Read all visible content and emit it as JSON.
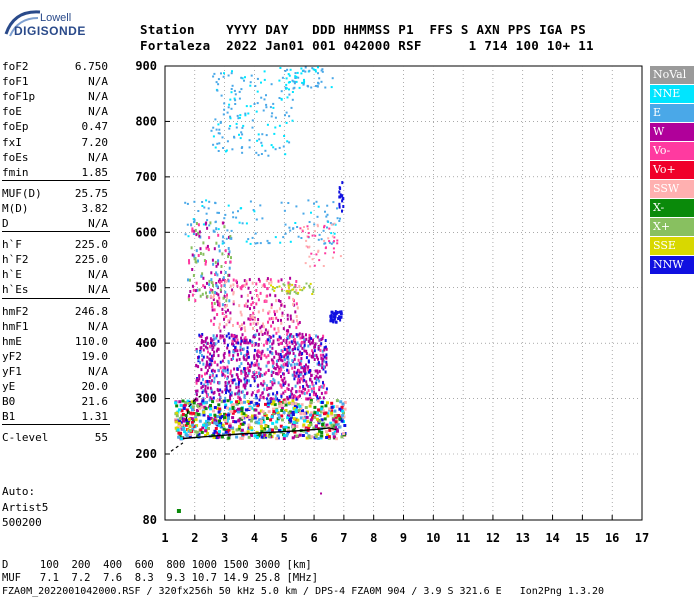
{
  "logo": {
    "brand": "Lowell",
    "product": "DIGISONDE"
  },
  "header": {
    "line1": "Station    YYYY DAY   DDD HHMMSS P1  FFS S AXN PPS IGA PS",
    "line2": "Fortaleza  2022 Jan01 001 042000 RSF      1 714 100 10+ 11"
  },
  "params": [
    {
      "key": "foF2",
      "value": "6.750"
    },
    {
      "key": "foF1",
      "value": "N/A"
    },
    {
      "key": "foF1p",
      "value": "N/A"
    },
    {
      "key": "foE",
      "value": "N/A"
    },
    {
      "key": "foEp",
      "value": "0.47"
    },
    {
      "key": "fxI",
      "value": "7.20"
    },
    {
      "key": "foEs",
      "value": "N/A"
    },
    {
      "key": "fmin",
      "value": "1.85"
    },
    {
      "key": "MUF(D)",
      "value": "25.75"
    },
    {
      "key": "M(D)",
      "value": "3.82"
    },
    {
      "key": "D",
      "value": "N/A"
    },
    {
      "key": "h`F",
      "value": "225.0"
    },
    {
      "key": "h`F2",
      "value": "225.0"
    },
    {
      "key": "h`E",
      "value": "N/A"
    },
    {
      "key": "h`Es",
      "value": "N/A"
    },
    {
      "key": "hmF2",
      "value": "246.8"
    },
    {
      "key": "hmF1",
      "value": "N/A"
    },
    {
      "key": "hmE",
      "value": "110.0"
    },
    {
      "key": "yF2",
      "value": "19.0"
    },
    {
      "key": "yF1",
      "value": "N/A"
    },
    {
      "key": "yE",
      "value": "20.0"
    },
    {
      "key": "B0",
      "value": "21.6"
    },
    {
      "key": "B1",
      "value": "1.31"
    },
    {
      "key": "C-level",
      "value": "55"
    }
  ],
  "auto": {
    "line1": "Auto:",
    "line2": "Artist5",
    "line3": "500200"
  },
  "legend": [
    {
      "label": "NoVal",
      "color": "#9a9a9a"
    },
    {
      "label": "NNE",
      "color": "#00e5ff"
    },
    {
      "label": "E",
      "color": "#4aa8e8"
    },
    {
      "label": "W",
      "color": "#b0009a"
    },
    {
      "label": "Vo-",
      "color": "#ff3aa0"
    },
    {
      "label": "Vo+",
      "color": "#f0002a"
    },
    {
      "label": "SSW",
      "color": "#ffb0b0"
    },
    {
      "label": "X-",
      "color": "#0a8a0a"
    },
    {
      "label": "X+",
      "color": "#88c060"
    },
    {
      "label": "SSE",
      "color": "#d8d800"
    },
    {
      "label": "NNW",
      "color": "#1010e0"
    }
  ],
  "chart_data": {
    "type": "scatter",
    "x_ticks": [
      "1",
      "2",
      "3",
      "4",
      "5",
      "6",
      "7",
      "8",
      "9",
      "10",
      "11",
      "12",
      "13",
      "14",
      "15",
      "16",
      "17"
    ],
    "y_ticks": [
      "80",
      "200",
      "300",
      "400",
      "500",
      "600",
      "700",
      "800",
      "900"
    ],
    "xlim": [
      1,
      17
    ],
    "ylim": [
      80,
      900
    ],
    "grid": true,
    "profile_curve": [
      [
        1.6,
        228
      ],
      [
        2.5,
        232
      ],
      [
        3.5,
        236
      ],
      [
        4.5,
        239
      ],
      [
        5.5,
        242
      ],
      [
        6.2,
        245
      ],
      [
        6.5,
        247
      ],
      [
        6.75,
        244
      ]
    ],
    "trace_curve_dashed": [
      [
        1.7,
        260
      ],
      [
        1.8,
        285
      ],
      [
        2.0,
        298
      ],
      [
        2.2,
        305
      ]
    ]
  },
  "bottom": {
    "line1": "D     100  200  400  600  800 1000 1500 3000 [km]",
    "line2": "MUF   7.1  7.2  7.6  8.3  9.3 10.7 14.9 25.8 [MHz]",
    "line3": "FZA0M_2022001042000.RSF / 320fx256h 50 kHz 5.0 km / DPS-4 FZA0M 904 / 3.9 S 321.6 E   Ion2Png 1.3.20"
  }
}
